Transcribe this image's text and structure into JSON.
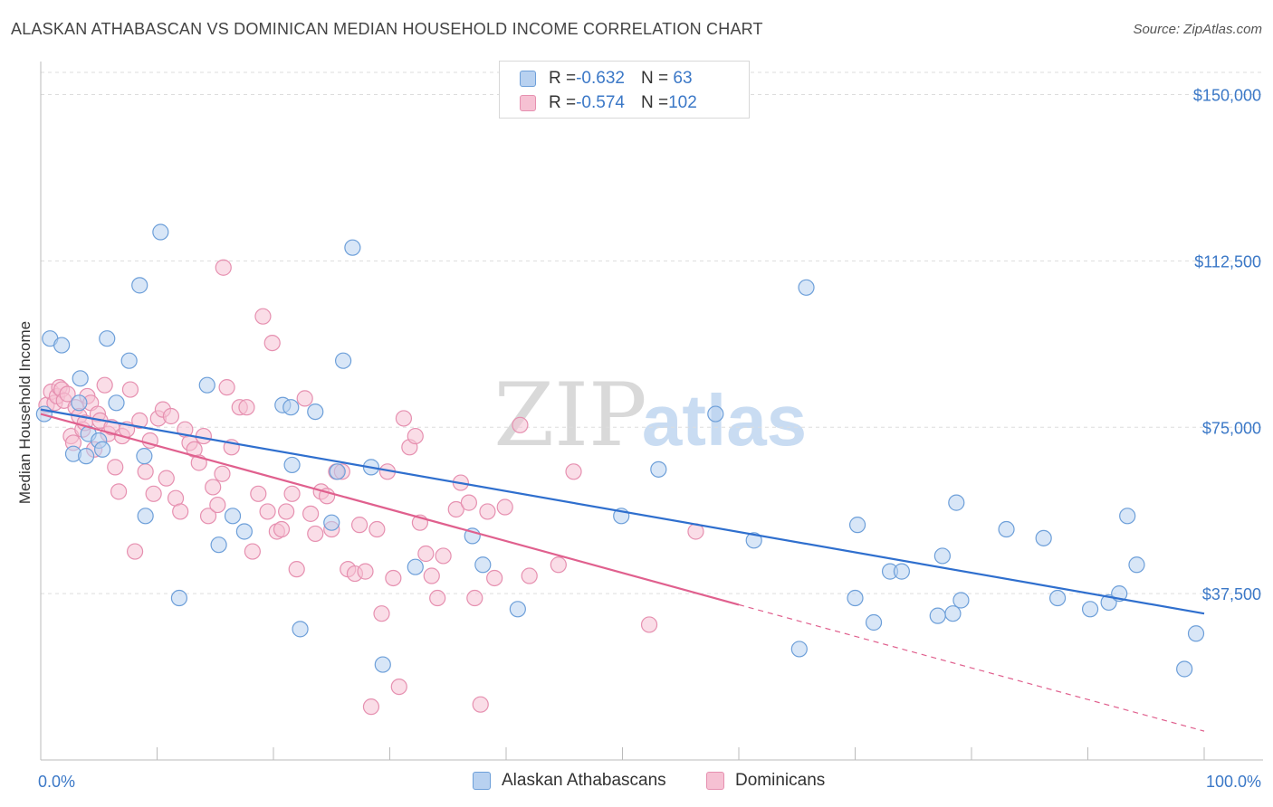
{
  "title": "ALASKAN ATHABASCAN VS DOMINICAN MEDIAN HOUSEHOLD INCOME CORRELATION CHART",
  "source": "Source: ZipAtlas.com",
  "watermark": {
    "zip": "ZIP",
    "atlas": "atlas"
  },
  "colors": {
    "blue_fill": "#b8d1f0",
    "blue_stroke": "#6d9fd9",
    "blue_line": "#2f6fce",
    "pink_fill": "#f6c1d3",
    "pink_stroke": "#e690b0",
    "pink_line": "#e0608e",
    "axis_text": "#3b78c7",
    "grid": "#dddddd"
  },
  "legend": {
    "rows": [
      {
        "r_label": "R = ",
        "r_value": "-0.632",
        "n_label": "N = ",
        "n_value": " 63"
      },
      {
        "r_label": "R = ",
        "r_value": "-0.574",
        "n_label": "N = ",
        "n_value": "102"
      }
    ]
  },
  "chart_data": {
    "type": "scatter",
    "title": "ALASKAN ATHABASCAN VS DOMINICAN MEDIAN HOUSEHOLD INCOME CORRELATION CHART",
    "xlabel": "",
    "ylabel": "Median Household Income",
    "xlim": [
      0,
      100
    ],
    "ylim": [
      0,
      155000
    ],
    "x_tick_labels": [
      "0.0%",
      "100.0%"
    ],
    "y_ticks": [
      37500,
      75000,
      112500,
      150000
    ],
    "y_tick_labels": [
      "$37,500",
      "$75,000",
      "$112,500",
      "$150,000"
    ],
    "legend_position": "top-center",
    "series": [
      {
        "name": "Alaskan Athabascans",
        "color": "#6d9fd9",
        "r": -0.632,
        "n": 63,
        "trend": {
          "x": [
            0,
            100
          ],
          "y": [
            79000,
            33000
          ]
        },
        "points": [
          [
            0.3,
            78000
          ],
          [
            0.8,
            95000
          ],
          [
            1.8,
            93500
          ],
          [
            3.3,
            80500
          ],
          [
            2.8,
            69000
          ],
          [
            3.4,
            86000
          ],
          [
            3.9,
            68500
          ],
          [
            4.1,
            73500
          ],
          [
            6.5,
            80500
          ],
          [
            5.0,
            72000
          ],
          [
            5.3,
            70000
          ],
          [
            5.7,
            95000
          ],
          [
            7.6,
            90000
          ],
          [
            8.5,
            107000
          ],
          [
            9.0,
            55000
          ],
          [
            8.9,
            68500
          ],
          [
            10.3,
            119000
          ],
          [
            11.9,
            36500
          ],
          [
            14.3,
            84500
          ],
          [
            15.3,
            48500
          ],
          [
            16.5,
            55000
          ],
          [
            17.5,
            51500
          ],
          [
            20.8,
            80000
          ],
          [
            21.6,
            66500
          ],
          [
            22.3,
            29500
          ],
          [
            23.6,
            78500
          ],
          [
            25.0,
            53500
          ],
          [
            26.0,
            90000
          ],
          [
            26.8,
            115500
          ],
          [
            28.4,
            66000
          ],
          [
            29.4,
            21500
          ],
          [
            32.2,
            43500
          ],
          [
            37.1,
            50500
          ],
          [
            38.0,
            44000
          ],
          [
            41.0,
            34000
          ],
          [
            49.9,
            55000
          ],
          [
            53.1,
            65500
          ],
          [
            58.0,
            78000
          ],
          [
            61.3,
            49500
          ],
          [
            65.8,
            106500
          ],
          [
            65.2,
            25000
          ],
          [
            70.0,
            36500
          ],
          [
            70.2,
            53000
          ],
          [
            71.6,
            31000
          ],
          [
            73.0,
            42500
          ],
          [
            74.0,
            42500
          ],
          [
            77.1,
            32500
          ],
          [
            77.5,
            46000
          ],
          [
            78.4,
            33000
          ],
          [
            78.7,
            58000
          ],
          [
            79.1,
            36000
          ],
          [
            83.0,
            52000
          ],
          [
            86.2,
            50000
          ],
          [
            87.4,
            36500
          ],
          [
            90.2,
            34000
          ],
          [
            91.8,
            35500
          ],
          [
            92.7,
            37500
          ],
          [
            93.4,
            55000
          ],
          [
            94.2,
            44000
          ],
          [
            98.3,
            20500
          ],
          [
            99.3,
            28500
          ],
          [
            21.5,
            79500
          ],
          [
            25.5,
            65000
          ]
        ]
      },
      {
        "name": "Dominicans",
        "color": "#e690b0",
        "r": -0.574,
        "n": 102,
        "trend": {
          "x": [
            0,
            60
          ],
          "y": [
            78000,
            35000
          ]
        },
        "trend_dashed": {
          "x": [
            60,
            100
          ],
          "y": [
            35000,
            6500
          ]
        },
        "points": [
          [
            0.5,
            80000
          ],
          [
            0.9,
            83000
          ],
          [
            1.2,
            80500
          ],
          [
            1.4,
            82000
          ],
          [
            1.6,
            84000
          ],
          [
            1.8,
            83500
          ],
          [
            2.0,
            81000
          ],
          [
            2.3,
            82500
          ],
          [
            2.6,
            73000
          ],
          [
            2.8,
            71500
          ],
          [
            3.0,
            79500
          ],
          [
            3.3,
            77500
          ],
          [
            3.6,
            74500
          ],
          [
            3.8,
            76000
          ],
          [
            4.0,
            82000
          ],
          [
            4.3,
            80500
          ],
          [
            4.6,
            70000
          ],
          [
            4.9,
            78000
          ],
          [
            5.1,
            76500
          ],
          [
            5.5,
            84500
          ],
          [
            5.8,
            73500
          ],
          [
            6.1,
            75000
          ],
          [
            6.4,
            66000
          ],
          [
            6.7,
            60500
          ],
          [
            7.0,
            73000
          ],
          [
            7.4,
            74500
          ],
          [
            7.7,
            83500
          ],
          [
            8.1,
            47000
          ],
          [
            8.5,
            76500
          ],
          [
            9.0,
            65000
          ],
          [
            9.4,
            72000
          ],
          [
            9.7,
            60000
          ],
          [
            10.1,
            77000
          ],
          [
            10.5,
            79000
          ],
          [
            10.8,
            63500
          ],
          [
            11.2,
            77500
          ],
          [
            11.6,
            59000
          ],
          [
            12.0,
            56000
          ],
          [
            12.4,
            74500
          ],
          [
            12.8,
            71500
          ],
          [
            13.2,
            70000
          ],
          [
            13.6,
            67000
          ],
          [
            14.0,
            73000
          ],
          [
            14.4,
            55000
          ],
          [
            14.8,
            61500
          ],
          [
            15.2,
            57500
          ],
          [
            15.6,
            64500
          ],
          [
            16.0,
            84000
          ],
          [
            16.4,
            70500
          ],
          [
            15.7,
            111000
          ],
          [
            17.1,
            79500
          ],
          [
            17.7,
            79500
          ],
          [
            18.2,
            47000
          ],
          [
            18.7,
            60000
          ],
          [
            19.1,
            100000
          ],
          [
            19.5,
            56000
          ],
          [
            19.9,
            94000
          ],
          [
            20.3,
            51500
          ],
          [
            20.7,
            52000
          ],
          [
            21.1,
            56000
          ],
          [
            21.6,
            60000
          ],
          [
            22.0,
            43000
          ],
          [
            22.7,
            81500
          ],
          [
            23.2,
            55500
          ],
          [
            23.6,
            51000
          ],
          [
            24.1,
            60500
          ],
          [
            24.6,
            59500
          ],
          [
            25.0,
            52000
          ],
          [
            25.4,
            65000
          ],
          [
            25.9,
            65000
          ],
          [
            26.4,
            43000
          ],
          [
            27.0,
            42000
          ],
          [
            27.4,
            53000
          ],
          [
            27.9,
            42500
          ],
          [
            28.4,
            12000
          ],
          [
            28.9,
            52000
          ],
          [
            29.3,
            33000
          ],
          [
            29.8,
            65000
          ],
          [
            30.3,
            41000
          ],
          [
            30.8,
            16500
          ],
          [
            31.2,
            77000
          ],
          [
            31.7,
            70500
          ],
          [
            32.2,
            73000
          ],
          [
            32.6,
            53500
          ],
          [
            33.1,
            46500
          ],
          [
            33.6,
            41500
          ],
          [
            34.1,
            36500
          ],
          [
            34.6,
            46000
          ],
          [
            35.7,
            56500
          ],
          [
            36.1,
            62500
          ],
          [
            36.8,
            58000
          ],
          [
            37.3,
            36500
          ],
          [
            37.8,
            12500
          ],
          [
            38.4,
            56000
          ],
          [
            39.0,
            41000
          ],
          [
            39.9,
            57000
          ],
          [
            41.2,
            75500
          ],
          [
            42.0,
            41500
          ],
          [
            44.5,
            44000
          ],
          [
            45.8,
            65000
          ],
          [
            52.3,
            30500
          ],
          [
            56.3,
            51500
          ]
        ]
      }
    ]
  },
  "bottom_legend": [
    {
      "label": "Alaskan Athabascans"
    },
    {
      "label": "Dominicans"
    }
  ]
}
